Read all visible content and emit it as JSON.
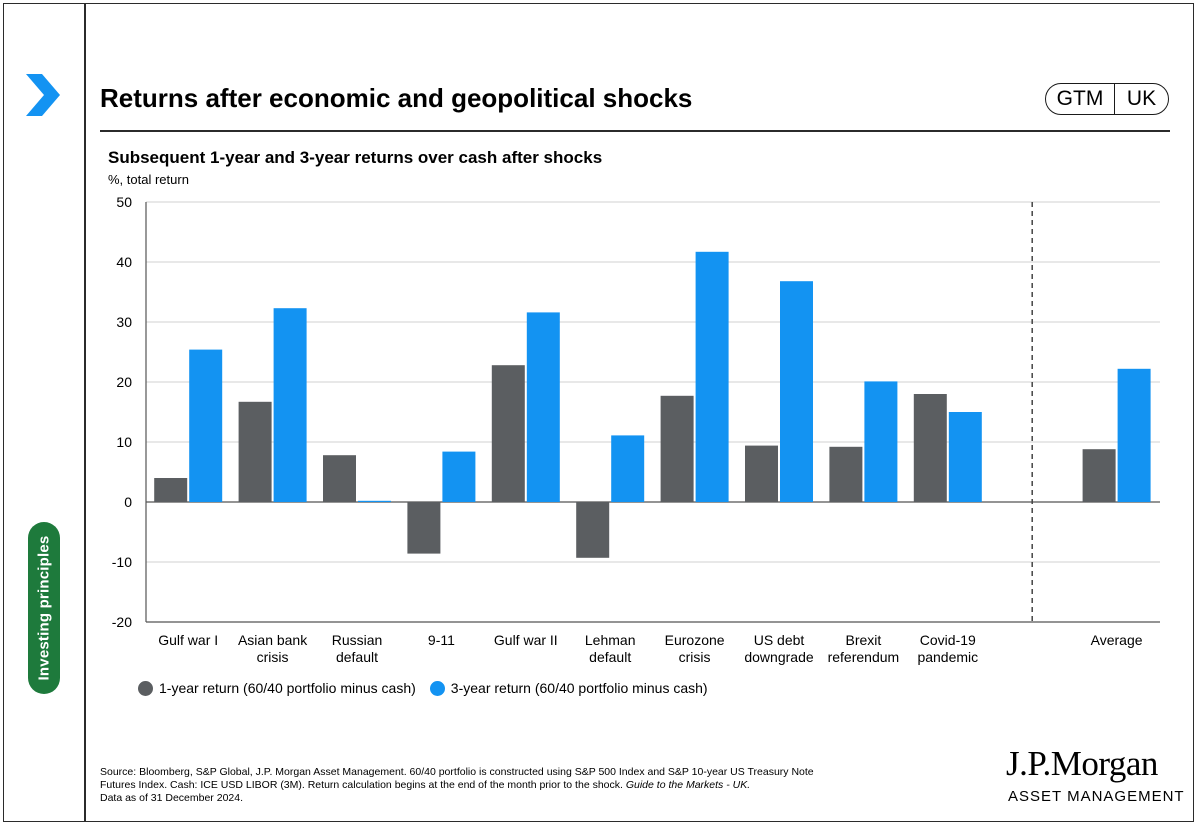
{
  "header": {
    "title": "Returns after economic and geopolitical shocks",
    "badge_left": "GTM",
    "badge_right": "UK",
    "side_tab": "Investing principles"
  },
  "colors": {
    "series_1y": "#5b5e61",
    "series_3y": "#1393f2",
    "side_tab": "#1e7a3c",
    "chevron": "#1393f2"
  },
  "icons": {
    "chevron": "chevron-right-icon"
  },
  "chart_data": {
    "type": "bar",
    "title": "Subsequent 1-year and 3-year returns over cash after shocks",
    "unit_label": "%, total return",
    "ylim": [
      -20,
      50
    ],
    "yticks": [
      -20,
      -10,
      0,
      10,
      20,
      30,
      40,
      50
    ],
    "grid": true,
    "legend_position": "bottom-left",
    "categories": [
      [
        "Gulf war I"
      ],
      [
        "Asian bank",
        "crisis"
      ],
      [
        "Russian",
        "default"
      ],
      [
        "9-11"
      ],
      [
        "Gulf war II"
      ],
      [
        "Lehman",
        "default"
      ],
      [
        "Eurozone",
        "crisis"
      ],
      [
        "US debt",
        "downgrade"
      ],
      [
        "Brexit",
        "referendum"
      ],
      [
        "Covid-19",
        "pandemic"
      ],
      [
        "Average"
      ]
    ],
    "separator_before_index": 10,
    "series": [
      {
        "name": "1-year return (60/40 portfolio minus cash)",
        "values": [
          4.0,
          16.7,
          7.8,
          -8.6,
          22.8,
          -9.3,
          17.7,
          9.4,
          9.2,
          18.0,
          8.8
        ]
      },
      {
        "name": "3-year return (60/40 portfolio minus cash)",
        "values": [
          25.4,
          32.3,
          0.2,
          8.4,
          31.6,
          11.1,
          41.7,
          36.8,
          20.1,
          15.0,
          22.2
        ]
      }
    ]
  },
  "footer": {
    "source_line1": "Source: Bloomberg, S&P Global, J.P. Morgan Asset Management. 60/40 portfolio is constructed using S&P 500 Index and S&P 10-year US Treasury Note",
    "source_line2": "Futures Index. Cash: ICE USD LIBOR (3M). Return calculation begins at the end of the month prior to the shock.",
    "source_italic": "Guide to the Markets - UK.",
    "source_line3": "Data as of 31 December 2024.",
    "logo_name": "J.P.Morgan",
    "logo_sub": "ASSET MANAGEMENT"
  }
}
